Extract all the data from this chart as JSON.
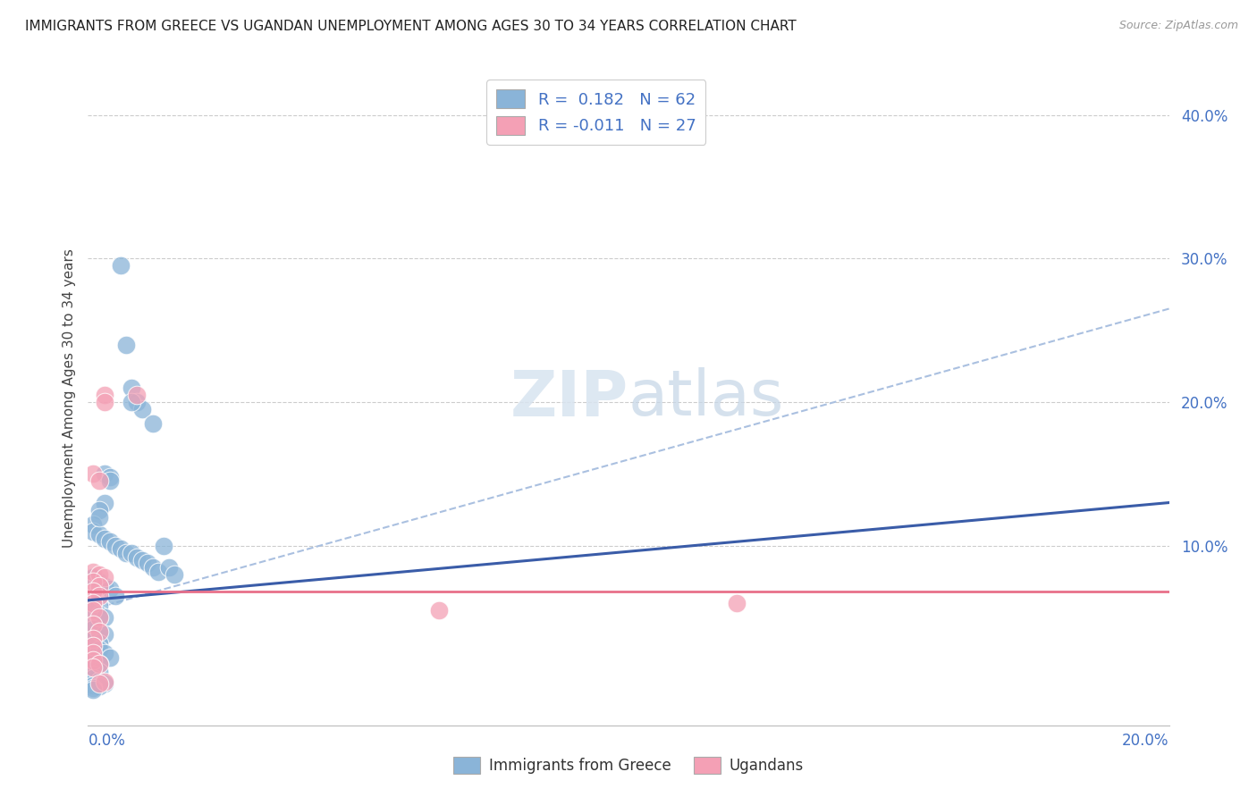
{
  "title": "IMMIGRANTS FROM GREECE VS UGANDAN UNEMPLOYMENT AMONG AGES 30 TO 34 YEARS CORRELATION CHART",
  "source": "Source: ZipAtlas.com",
  "ylabel": "Unemployment Among Ages 30 to 34 years",
  "legend_label1": "Immigrants from Greece",
  "legend_label2": "Ugandans",
  "r1": "0.182",
  "n1": "62",
  "r2": "-0.011",
  "n2": "27",
  "color_blue": "#8ab4d8",
  "color_pink": "#f4a0b5",
  "color_blue_line": "#3a5ca8",
  "color_pink_line": "#e8708a",
  "color_dash": "#aac0e0",
  "xlim": [
    0.0,
    0.2
  ],
  "ylim": [
    -0.025,
    0.43
  ],
  "blue_scatter_x": [
    0.006,
    0.007,
    0.008,
    0.009,
    0.01,
    0.008,
    0.012,
    0.003,
    0.004,
    0.004,
    0.003,
    0.002,
    0.001,
    0.001,
    0.002,
    0.003,
    0.004,
    0.005,
    0.006,
    0.007,
    0.008,
    0.009,
    0.01,
    0.011,
    0.012,
    0.013,
    0.014,
    0.015,
    0.016,
    0.002,
    0.001,
    0.002,
    0.003,
    0.004,
    0.005,
    0.001,
    0.002,
    0.001,
    0.002,
    0.003,
    0.001,
    0.001,
    0.002,
    0.003,
    0.001,
    0.002,
    0.001,
    0.002,
    0.003,
    0.004,
    0.001,
    0.002,
    0.001,
    0.002,
    0.001,
    0.001,
    0.002,
    0.003,
    0.001,
    0.002,
    0.001,
    0.001
  ],
  "blue_scatter_y": [
    0.295,
    0.24,
    0.21,
    0.2,
    0.195,
    0.2,
    0.185,
    0.15,
    0.148,
    0.145,
    0.13,
    0.125,
    0.115,
    0.11,
    0.108,
    0.105,
    0.103,
    0.1,
    0.098,
    0.095,
    0.095,
    0.092,
    0.09,
    0.088,
    0.085,
    0.082,
    0.1,
    0.085,
    0.08,
    0.12,
    0.078,
    0.075,
    0.072,
    0.07,
    0.065,
    0.06,
    0.058,
    0.055,
    0.052,
    0.05,
    0.045,
    0.042,
    0.04,
    0.038,
    0.035,
    0.032,
    0.03,
    0.028,
    0.025,
    0.022,
    0.02,
    0.018,
    0.015,
    0.012,
    0.01,
    0.008,
    0.006,
    0.004,
    0.003,
    0.002,
    0.001,
    0.0
  ],
  "pink_scatter_x": [
    0.009,
    0.003,
    0.003,
    0.001,
    0.002,
    0.001,
    0.002,
    0.003,
    0.001,
    0.002,
    0.001,
    0.002,
    0.001,
    0.001,
    0.002,
    0.001,
    0.002,
    0.001,
    0.001,
    0.001,
    0.12,
    0.065,
    0.001,
    0.002,
    0.001,
    0.003,
    0.002
  ],
  "pink_scatter_y": [
    0.205,
    0.205,
    0.2,
    0.15,
    0.145,
    0.082,
    0.08,
    0.078,
    0.075,
    0.072,
    0.068,
    0.065,
    0.06,
    0.055,
    0.05,
    0.045,
    0.04,
    0.035,
    0.03,
    0.025,
    0.06,
    0.055,
    0.02,
    0.018,
    0.015,
    0.005,
    0.004
  ],
  "blue_line_x0": 0.0,
  "blue_line_y0": 0.062,
  "blue_line_x1": 0.2,
  "blue_line_y1": 0.13,
  "pink_line_y": 0.068,
  "dash_line_x0": 0.0,
  "dash_line_y0": 0.055,
  "dash_line_x1": 0.2,
  "dash_line_y1": 0.265
}
